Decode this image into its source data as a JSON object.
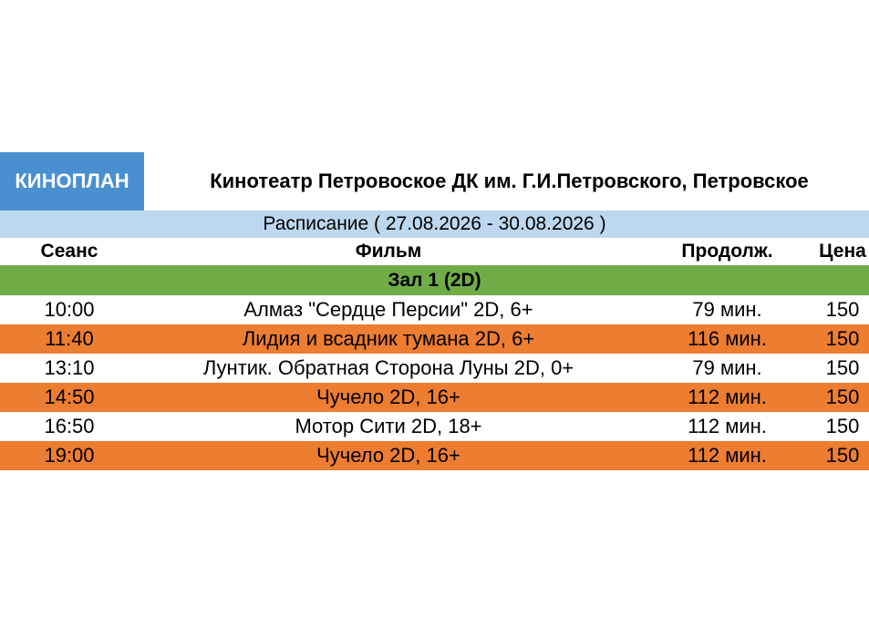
{
  "header": {
    "logo": "КИНОПЛАН",
    "cinema": "Кинотеатр Петровоское ДК им. Г.И.Петровского, Петровское"
  },
  "period": "Расписание ( 27.08.2026 - 30.08.2026 )",
  "columns": {
    "time": "Сеанс",
    "film": "Фильм",
    "duration": "Продолж.",
    "price": "Цена"
  },
  "hall": "Зал 1 (2D)",
  "colors": {
    "logo_bg": "#4a90d0",
    "period_bg": "#bdd7ee",
    "hall_bg": "#70ad47",
    "alt_row_bg": "#ed7d31"
  },
  "sessions": [
    {
      "time": "10:00",
      "film": "Алмаз \"Сердце Персии\" 2D, 6+",
      "duration": "79 мин.",
      "price": "150"
    },
    {
      "time": "11:40",
      "film": "Лидия и всадник тумана 2D, 6+",
      "duration": "116 мин.",
      "price": "150"
    },
    {
      "time": "13:10",
      "film": "Лунтик. Обратная Сторона Луны 2D, 0+",
      "duration": "79 мин.",
      "price": "150"
    },
    {
      "time": "14:50",
      "film": "Чучело 2D, 16+",
      "duration": "112 мин.",
      "price": "150"
    },
    {
      "time": "16:50",
      "film": "Мотор Сити 2D, 18+",
      "duration": "112 мин.",
      "price": "150"
    },
    {
      "time": "19:00",
      "film": "Чучело 2D, 16+",
      "duration": "112 мин.",
      "price": "150"
    }
  ]
}
